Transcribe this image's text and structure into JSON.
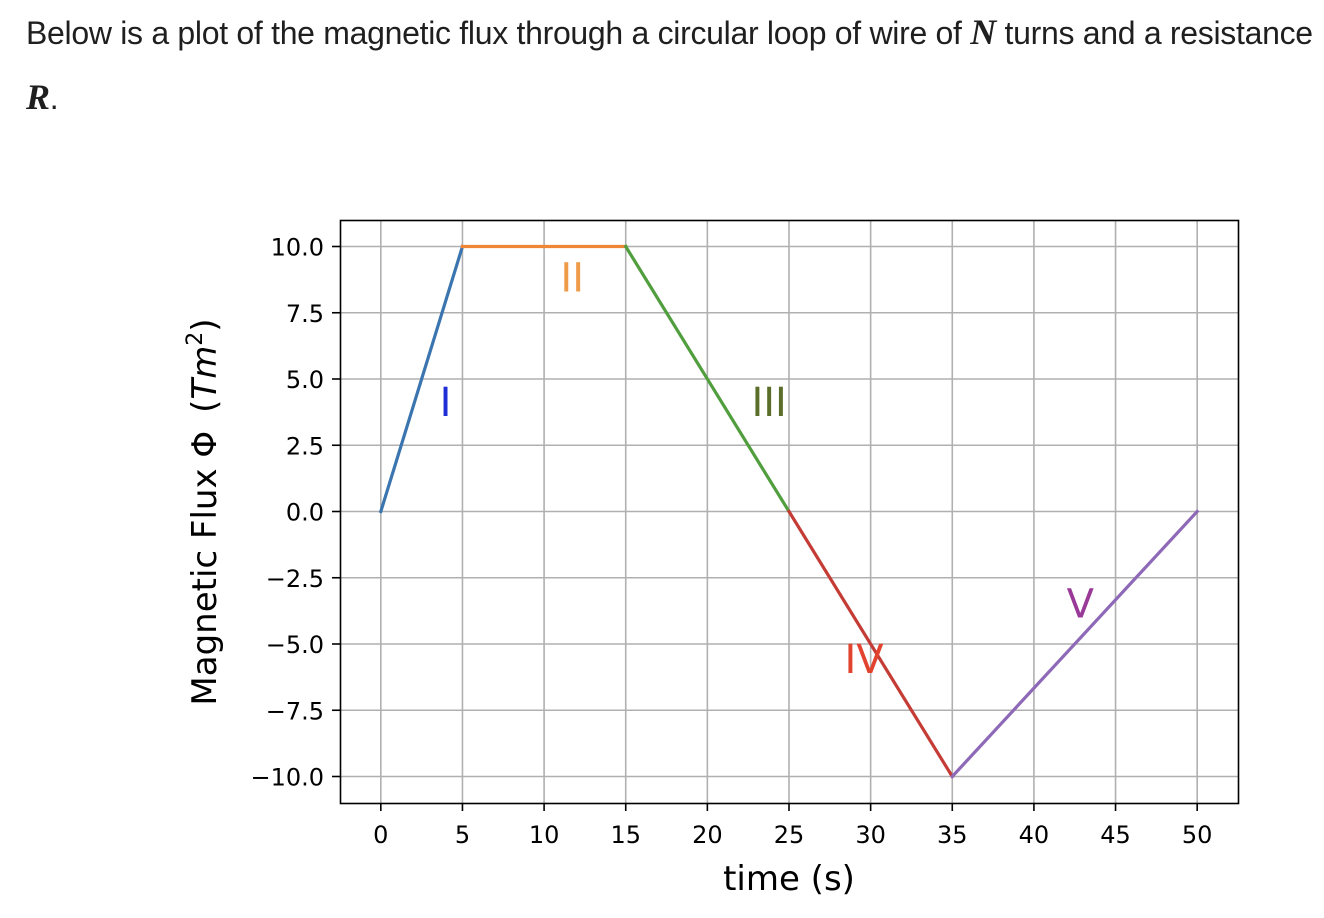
{
  "intro": {
    "text_1": "Below is a plot of the magnetic flux through a circular loop of wire of ",
    "var_n": "N",
    "text_2": " turns and a resistance ",
    "var_r": "R",
    "text_3": "."
  },
  "chart_data": {
    "type": "line",
    "xlabel": "time (s)",
    "ylabel_text": "Magnetic Flux Φ",
    "ylabel_unit": "Tm",
    "ylabel_unit_exp": "2",
    "xlim": [
      -2.5,
      52.5
    ],
    "ylim": [
      -11.0,
      11.0
    ],
    "grid": true,
    "xticks": [
      0,
      5,
      10,
      15,
      20,
      25,
      30,
      35,
      40,
      45,
      50
    ],
    "yticks": [
      10.0,
      7.5,
      5.0,
      2.5,
      0.0,
      -2.5,
      -5.0,
      -7.5,
      -10.0
    ],
    "ytick_labels": [
      "10.0",
      "7.5",
      "5.0",
      "2.5",
      "0.0",
      "−2.5",
      "−5.0",
      "−7.5",
      "−10.0"
    ],
    "series": [
      {
        "label": "I",
        "color": "#3b75af",
        "label_color": "#1f2fd6",
        "x": [
          0,
          5
        ],
        "y": [
          0,
          10
        ],
        "label_pos": [
          3.6,
          3.6
        ]
      },
      {
        "label": "II",
        "color": "#ef8636",
        "label_color": "#ef9a48",
        "x": [
          5,
          15
        ],
        "y": [
          10,
          10
        ],
        "label_pos": [
          11.0,
          8.3
        ]
      },
      {
        "label": "III",
        "color": "#519e3e",
        "label_color": "#5a6e2a",
        "x": [
          15,
          25
        ],
        "y": [
          10,
          0
        ],
        "label_pos": [
          22.7,
          3.6
        ]
      },
      {
        "label": "IV",
        "color": "#c43c35",
        "label_color": "#e2432e",
        "x": [
          25,
          35
        ],
        "y": [
          0,
          -10
        ],
        "label_pos": [
          28.4,
          -6.1
        ]
      },
      {
        "label": "V",
        "color": "#8d69b8",
        "label_color": "#9a3a98",
        "x": [
          35,
          50
        ],
        "y": [
          -10,
          0
        ],
        "label_pos": [
          42.0,
          -4.0
        ]
      }
    ]
  }
}
